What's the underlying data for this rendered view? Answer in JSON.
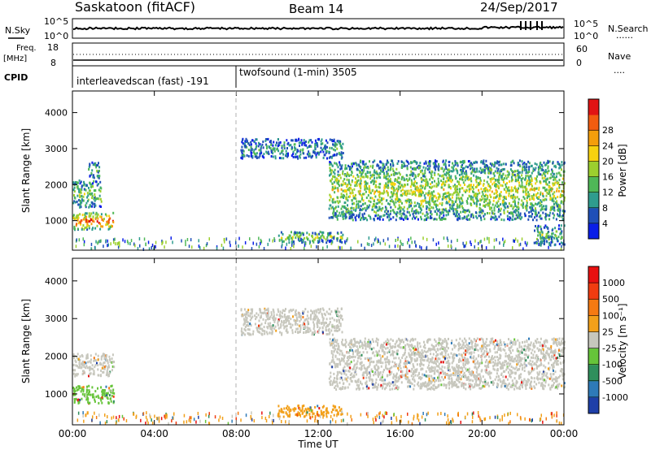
{
  "header": {
    "site": "Saskatoon (fitACF)",
    "beam": "Beam 14",
    "date": "24/Sep/2017"
  },
  "strip_labels": {
    "nsky": "N.Sky",
    "nsearch": "N.Search",
    "freq_line1": "Freq.",
    "freq_line2": "[MHz]",
    "nave": "Nave",
    "cpid": "CPID",
    "dots": "......",
    "dots_short": "...."
  },
  "noise_axis": {
    "left_ticks": [
      "10^5",
      "10^0"
    ],
    "right_ticks": [
      "10^5",
      "10^0"
    ]
  },
  "freq_axis": {
    "left_ticks": [
      "18",
      "8"
    ],
    "right_ticks": [
      "60",
      "0"
    ]
  },
  "cpid_segments": [
    {
      "label": "interleavedscan (fast) -191",
      "start_hour": 0,
      "end_hour": 8
    },
    {
      "label": "twofsound (1-min) 3505",
      "start_hour": 8,
      "end_hour": 24
    }
  ],
  "chart_data": [
    {
      "type": "heatmap",
      "title": "",
      "ylabel": "Slant Range [km]",
      "xlim": [
        0,
        24
      ],
      "ylim": [
        180,
        4600
      ],
      "yticks": [
        1000,
        2000,
        3000,
        4000
      ],
      "colorbar_label": "Power [dB]",
      "colorbar_ticks": [
        "4",
        "8",
        "12",
        "16",
        "20",
        "24",
        "28"
      ],
      "colorbar_colors": [
        "#0a1ee8",
        "#1f4fb8",
        "#2f9c8e",
        "#4fb857",
        "#9ccf2e",
        "#f7d20f",
        "#f59e0b",
        "#f25c10",
        "#e11414"
      ],
      "echo_regions": [
        {
          "t0": 0.0,
          "t1": 2.0,
          "r0": 780,
          "r1": 1250,
          "level": 0.85
        },
        {
          "t0": 0.0,
          "t1": 1.4,
          "r0": 1400,
          "r1": 2150,
          "level": 0.45
        },
        {
          "t0": 0.7,
          "t1": 1.3,
          "r0": 2200,
          "r1": 2650,
          "level": 0.35
        },
        {
          "t0": 8.2,
          "t1": 13.2,
          "r0": 2750,
          "r1": 3300,
          "level": 0.3
        },
        {
          "t0": 12.5,
          "t1": 24.0,
          "r0": 1050,
          "r1": 2700,
          "level": 0.55
        },
        {
          "t0": 10.0,
          "t1": 13.2,
          "r0": 420,
          "r1": 720,
          "level": 0.5
        },
        {
          "t0": 22.5,
          "t1": 24.0,
          "r0": 350,
          "r1": 900,
          "level": 0.4
        }
      ]
    },
    {
      "type": "heatmap",
      "title": "",
      "xlabel": "Time UT",
      "ylabel": "Slant Range [km]",
      "xlim": [
        0,
        24
      ],
      "ylim": [
        180,
        4600
      ],
      "xticks": [
        "00:00",
        "04:00",
        "08:00",
        "12:00",
        "16:00",
        "20:00",
        "00:00"
      ],
      "yticks": [
        1000,
        2000,
        3000,
        4000
      ],
      "colorbar_label": "Velocity [m s⁻¹]",
      "colorbar_ticks": [
        "1000",
        "500",
        "100",
        "25",
        "-25",
        "-100",
        "-500",
        "-1000"
      ],
      "colorbar_colors": [
        "#1e3fa8",
        "#2e7ab8",
        "#2f8f5c",
        "#66c43a",
        "#c7c7bd",
        "#f2a01a",
        "#f57a12",
        "#f03c10",
        "#e81010"
      ],
      "echo_regions": [
        {
          "t0": 0.0,
          "t1": 2.0,
          "r0": 780,
          "r1": 1250,
          "color": "#66c43a"
        },
        {
          "t0": 0.0,
          "t1": 2.0,
          "r0": 1500,
          "r1": 2100,
          "color": "#c7c7bd"
        },
        {
          "t0": 8.2,
          "t1": 13.2,
          "r0": 2600,
          "r1": 3300,
          "color": "#c7c7bd"
        },
        {
          "t0": 12.5,
          "t1": 24.0,
          "r0": 1150,
          "r1": 2500,
          "color": "#c7c7bd"
        },
        {
          "t0": 10.0,
          "t1": 13.2,
          "r0": 420,
          "r1": 720,
          "color": "#f2a01a"
        }
      ]
    }
  ]
}
